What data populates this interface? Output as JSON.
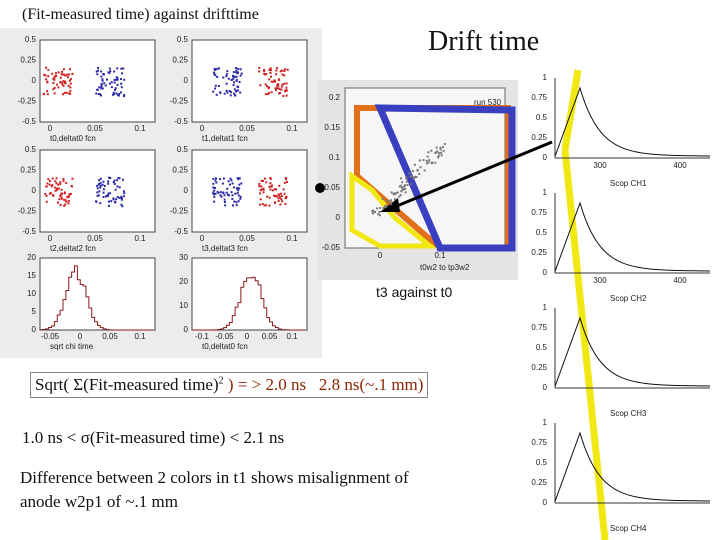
{
  "left_caption": "(Fit-measured time) against drifttime",
  "title": "Drift time",
  "center": {
    "caption": "t3 against t0",
    "run": "run 530",
    "xlabel": "t0w2 to tp3w2",
    "yticks": [
      "0.2",
      "0.15",
      "0.1",
      "0.05",
      "0",
      "-0.05"
    ],
    "xticks": [
      "0",
      "0.1"
    ]
  },
  "left_panels": [
    {
      "label": "t0,deltat0 fcn",
      "yticks": [
        "0.5",
        "0.25",
        "0",
        "-0.25",
        "-0.5"
      ],
      "xticks": [
        "0",
        "0.05",
        "0.1"
      ]
    },
    {
      "label": "t1,deltat1 fcn",
      "yticks": [
        "0.5",
        "0.25",
        "0",
        "-0.25",
        "-0.5"
      ],
      "xticks": [
        "0",
        "0.05",
        "0.1"
      ]
    },
    {
      "label": "t2,deltat2 fcn",
      "yticks": [
        "0.5",
        "0.25",
        "0",
        "-0.25",
        "-0.5"
      ],
      "xticks": [
        "0",
        "0.05",
        "0.1"
      ]
    },
    {
      "label": "t3,deltat3 fcn",
      "yticks": [
        "0.5",
        "0.25",
        "0",
        "-0.25",
        "-0.5"
      ],
      "xticks": [
        "0",
        "0.05",
        "0.1"
      ]
    },
    {
      "label": "sqrt chi time",
      "yticks": [
        "20",
        "15",
        "10",
        "5",
        "0"
      ],
      "xticks": [
        "-0.05",
        "0",
        "0.05",
        "0.1"
      ]
    },
    {
      "label": "t0,deltat0 fcn",
      "yticks": [
        "30",
        "20",
        "10",
        "0"
      ],
      "xticks": [
        "-0.1",
        "-0.05",
        "0",
        "0.05",
        "0.1"
      ]
    }
  ],
  "scopes": [
    {
      "label": "Scop CH1",
      "yticks": [
        "1",
        "0.75",
        "0.5",
        "0.25",
        "0"
      ],
      "xticks": [
        "300",
        "400"
      ]
    },
    {
      "label": "Scop CH2",
      "yticks": [
        "1",
        "0.75",
        "0.5",
        "0.25",
        "0"
      ],
      "xticks": [
        "300",
        "400"
      ]
    },
    {
      "label": "Scop CH3",
      "yticks": [
        "1",
        "0.75",
        "0.5",
        "0.25",
        "0"
      ],
      "xticks": []
    },
    {
      "label": "Scop CH4",
      "yticks": [
        "1",
        "0.75",
        "0.5",
        "0.25",
        "0"
      ],
      "xticks": []
    }
  ],
  "line1": {
    "a": "Sqrt( ",
    "sigma": "Σ",
    "b": "(Fit-measured time)",
    "sup": "2",
    "c": " ) = > 2.0 ns",
    "d": "2.8 ns(~.1 mm)"
  },
  "line2": "1.0 ns < σ(Fit-measured time) < 2.1 ns",
  "line3": [
    "Difference between 2 colors in t1 shows misalignment of",
    "anode w2p1 of ~.1 mm"
  ]
}
